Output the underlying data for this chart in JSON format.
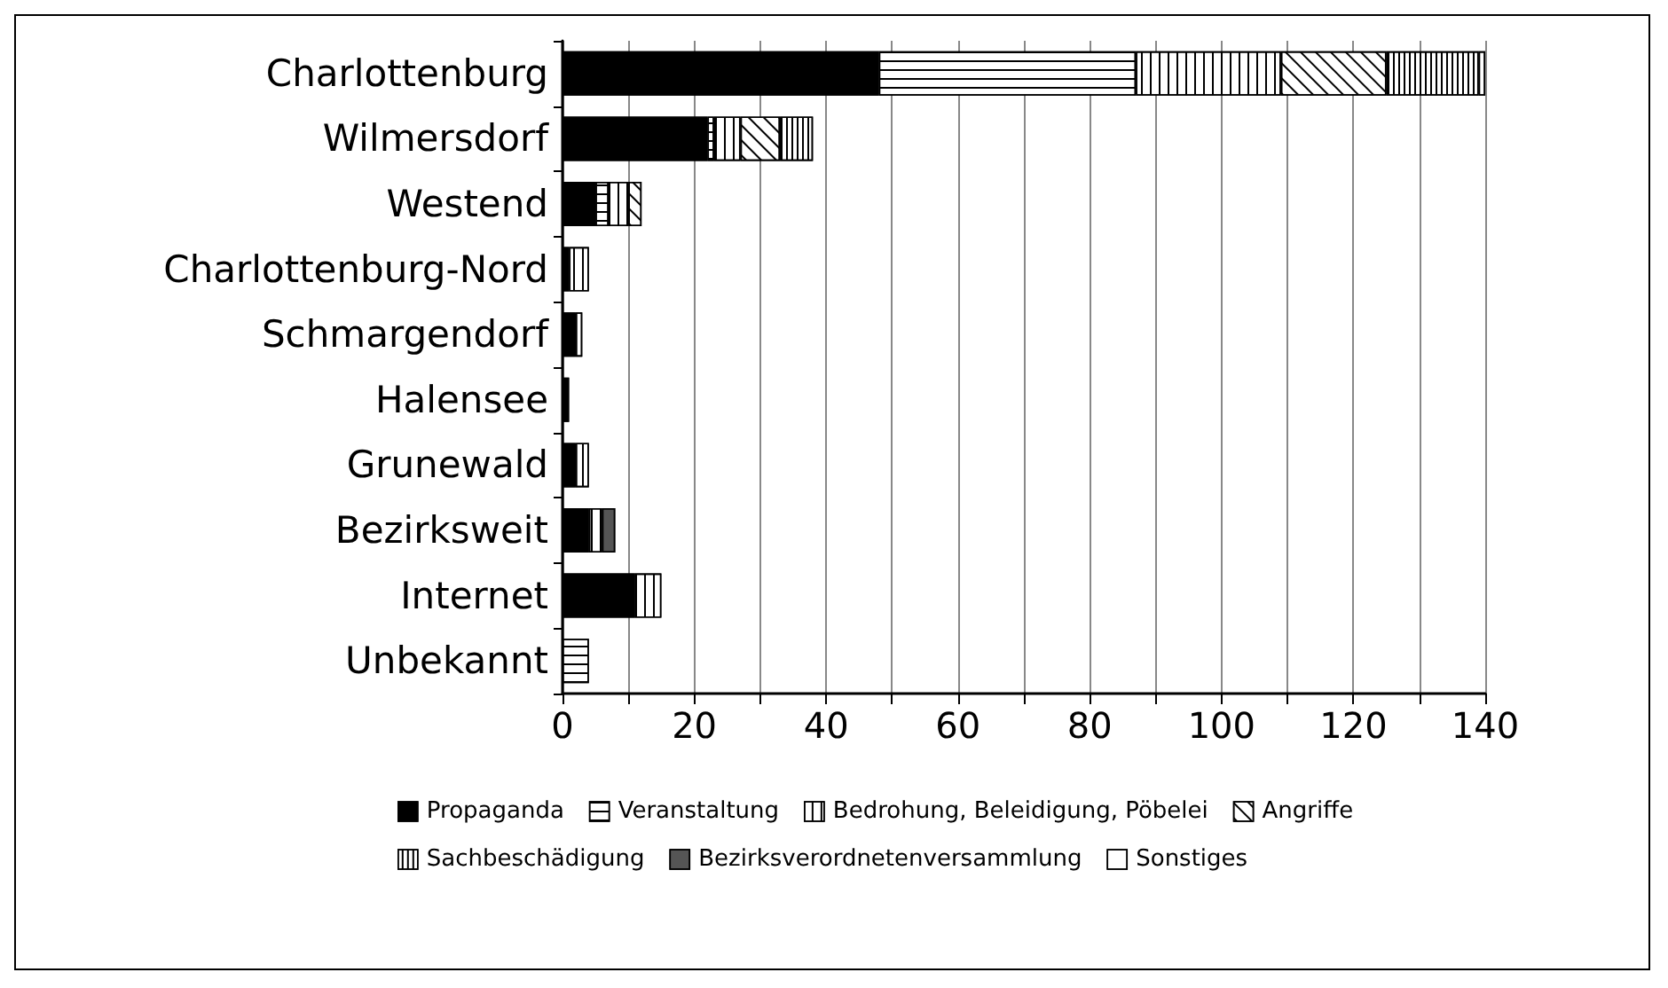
{
  "chart_data": {
    "type": "bar",
    "orientation": "horizontal",
    "stacked": true,
    "categories": [
      "Charlottenburg",
      "Wilmersdorf",
      "Westend",
      "Charlottenburg-Nord",
      "Schmargendorf",
      "Halensee",
      "Grunewald",
      "Bezirksweit",
      "Internet",
      "Unbekannt"
    ],
    "series": [
      {
        "name": "Propaganda",
        "color": "#000000",
        "values": [
          48,
          22,
          5,
          1,
          2,
          1,
          2,
          4,
          11,
          null
        ]
      },
      {
        "name": "Veranstaltung",
        "color": "#ffffff",
        "values": [
          39,
          1,
          2,
          null,
          null,
          null,
          null,
          null,
          null,
          4
        ]
      },
      {
        "name": "Bedrohung, Beleidigung, Pöbelei",
        "color": "#ffffff",
        "values": [
          22,
          4,
          3,
          3,
          1,
          null,
          2,
          2,
          4,
          null
        ]
      },
      {
        "name": "Angriffe",
        "color": "#ffffff",
        "values": [
          16,
          6,
          2,
          null,
          null,
          null,
          null,
          null,
          null,
          null
        ]
      },
      {
        "name": "Sachbeschädigung",
        "color": "#ffffff",
        "values": [
          14,
          5,
          null,
          null,
          null,
          null,
          null,
          null,
          null,
          null
        ]
      },
      {
        "name": "Bezirksverordnetenversammlung",
        "color": "#555555",
        "values": [
          null,
          null,
          null,
          null,
          null,
          null,
          null,
          2,
          null,
          null
        ]
      },
      {
        "name": "Sonstiges",
        "color": "#ffffff",
        "values": [
          1,
          null,
          null,
          null,
          null,
          null,
          null,
          null,
          null,
          null
        ]
      }
    ],
    "xlim": [
      0,
      140
    ],
    "xticks": [
      0,
      {
        "value": 10,
        "label": null
      },
      20,
      {
        "value": 30,
        "label": null
      },
      40,
      {
        "value": 50,
        "label": null
      },
      60,
      {
        "value": 70,
        "label": null
      },
      80,
      {
        "value": 90,
        "label": null
      },
      100,
      {
        "value": 110,
        "label": null
      },
      120,
      {
        "value": 130,
        "label": null
      },
      140
    ],
    "grid": "x",
    "legend": "bottom left"
  }
}
